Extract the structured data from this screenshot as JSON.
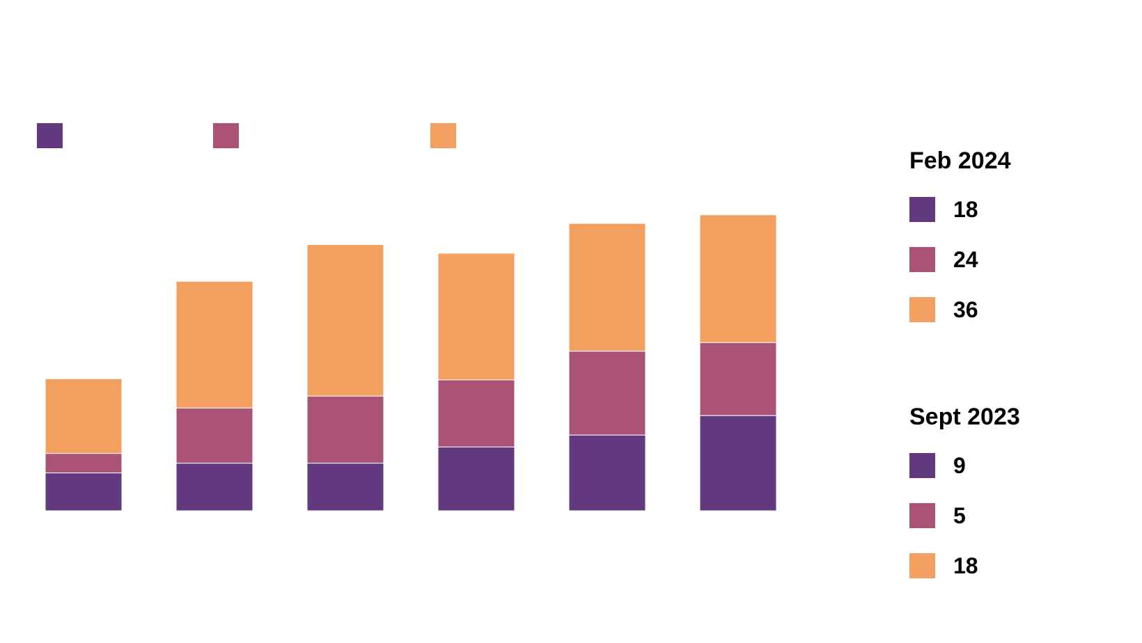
{
  "colors": {
    "series_1": "#62387f",
    "series_2": "#aa5376",
    "series_3": "#f29f60"
  },
  "chart_data": {
    "type": "bar",
    "stacked": true,
    "title": "",
    "xlabel": "",
    "ylabel": "",
    "categories": [
      "",
      "",
      "",
      "",
      "",
      ""
    ],
    "series": [
      {
        "values": [
          7,
          8.8,
          8.8,
          11.8,
          14,
          17.6
        ]
      },
      {
        "values": [
          3.6,
          10.2,
          12.4,
          12.4,
          15.5,
          13.5
        ]
      },
      {
        "values": [
          13.8,
          23.4,
          28,
          23.4,
          23.6,
          23.6
        ]
      }
    ],
    "ylim": [
      0,
      80
    ],
    "grid": false,
    "legend": "top-left"
  },
  "panels": [
    {
      "title": "Feb 2024",
      "values": [
        "18",
        "24",
        "36"
      ]
    },
    {
      "title": "Sept 2023",
      "values": [
        "9",
        "5",
        "18"
      ]
    }
  ]
}
